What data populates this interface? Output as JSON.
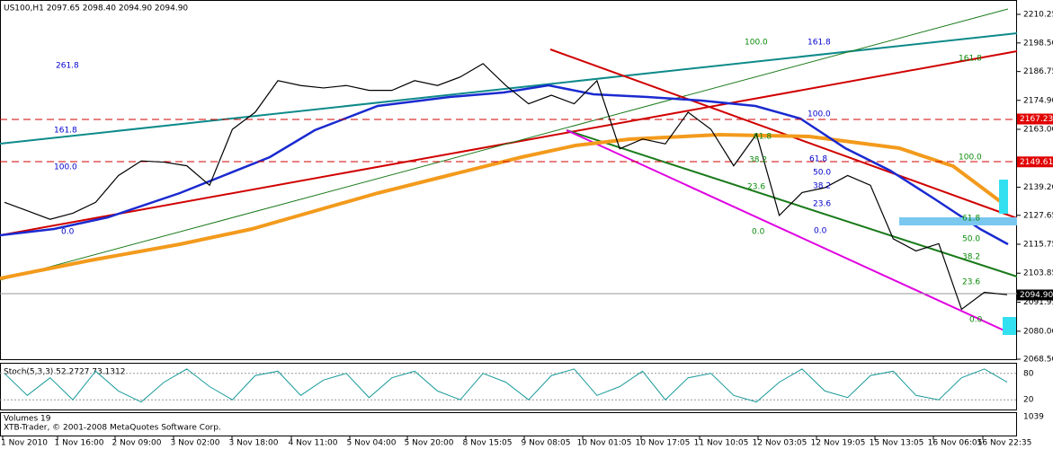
{
  "chart_data": {
    "type": "line",
    "title": "US100,H1 2097.65 2098.40 2094.90 2094.90",
    "color": "#000000",
    "values": [
      2133,
      2129.5,
      2126,
      2128.5,
      2133,
      2144,
      2150,
      2149.5,
      2148,
      2140,
      2163,
      2170,
      2183,
      2181,
      2180,
      2181,
      2179,
      2179,
      2183,
      2181,
      2184.5,
      2190,
      2181,
      2173.5,
      2177,
      2173.5,
      2183,
      2155,
      2159,
      2157,
      2170,
      2163,
      2148,
      2161,
      2127.6,
      2137,
      2139,
      2144,
      2140,
      2118,
      2113,
      2116,
      2089,
      2096,
      2095
    ],
    "ylim": [
      2068.5,
      2216.15
    ],
    "yticks": [
      2210.25,
      {
        "value": 2198.5,
        "label": "2198.50"
      },
      2186.75,
      {
        "value": 2174.9,
        "label": "2174.90"
      },
      {
        "value": 2163,
        "label": "2163.00"
      },
      {
        "value": 2139.2,
        "label": "2139.20"
      },
      2127.65,
      2115.75,
      2103.85,
      2091.95,
      {
        "value": 2080,
        "label": "2080.00"
      },
      {
        "value": 2068.5,
        "label": "2068.50"
      }
    ],
    "price_markers": [
      {
        "value": 2167.23,
        "color": "#e00000"
      },
      {
        "value": 2149.61,
        "color": "#e00000"
      },
      {
        "value": {
          "value": 2094.9,
          "label": "2094.90"
        },
        "color": "#000000"
      }
    ],
    "x_labels": [
      "1 Nov 2010",
      "1 Nov 16:00",
      "2 Nov 09:00",
      "3 Nov 02:00",
      "3 Nov 18:00",
      "4 Nov 11:00",
      "5 Nov 04:00",
      "5 Nov 20:00",
      "8 Nov 15:05",
      "9 Nov 08:05",
      "10 Nov 01:05",
      "10 Nov 17:05",
      "11 Nov 10:05",
      "12 Nov 03:05",
      "12 Nov 19:05",
      "15 Nov 13:05",
      "16 Nov 06:05",
      "16 Nov 22:35"
    ],
    "fib_labels": [
      "261.8",
      "161.8",
      "100.0",
      "0.0",
      "100.0",
      "161.8",
      "161.8",
      "100.0",
      "61.8",
      "50.0",
      "38.2",
      "23.6",
      "0.0",
      "100.0",
      "61.8",
      "38.2",
      "23.6",
      "0.0",
      "61.8",
      "50.0",
      "38.2",
      "23.6",
      "0.0"
    ],
    "stochastic": {
      "title": "Stoch(5,3,3) 52.2727 73.1312",
      "color": "#1a9a9a",
      "values": [
        80,
        30,
        70,
        20,
        85,
        40,
        15,
        60,
        90,
        50,
        20,
        75,
        85,
        30,
        65,
        80,
        25,
        70,
        85,
        40,
        20,
        80,
        60,
        20,
        75,
        90,
        30,
        50,
        85,
        20,
        70,
        80,
        30,
        15,
        60,
        90,
        40,
        25,
        75,
        85,
        30,
        20,
        70,
        90,
        60
      ],
      "ylim": [
        0,
        100
      ],
      "yticks": [
        80,
        20
      ]
    },
    "volumes": {
      "title": "Volumes 19",
      "yticks": [
        1039
      ]
    },
    "copyright": "XTB-Trader, © 2001-2008 MetaQuotes Software Corp."
  }
}
